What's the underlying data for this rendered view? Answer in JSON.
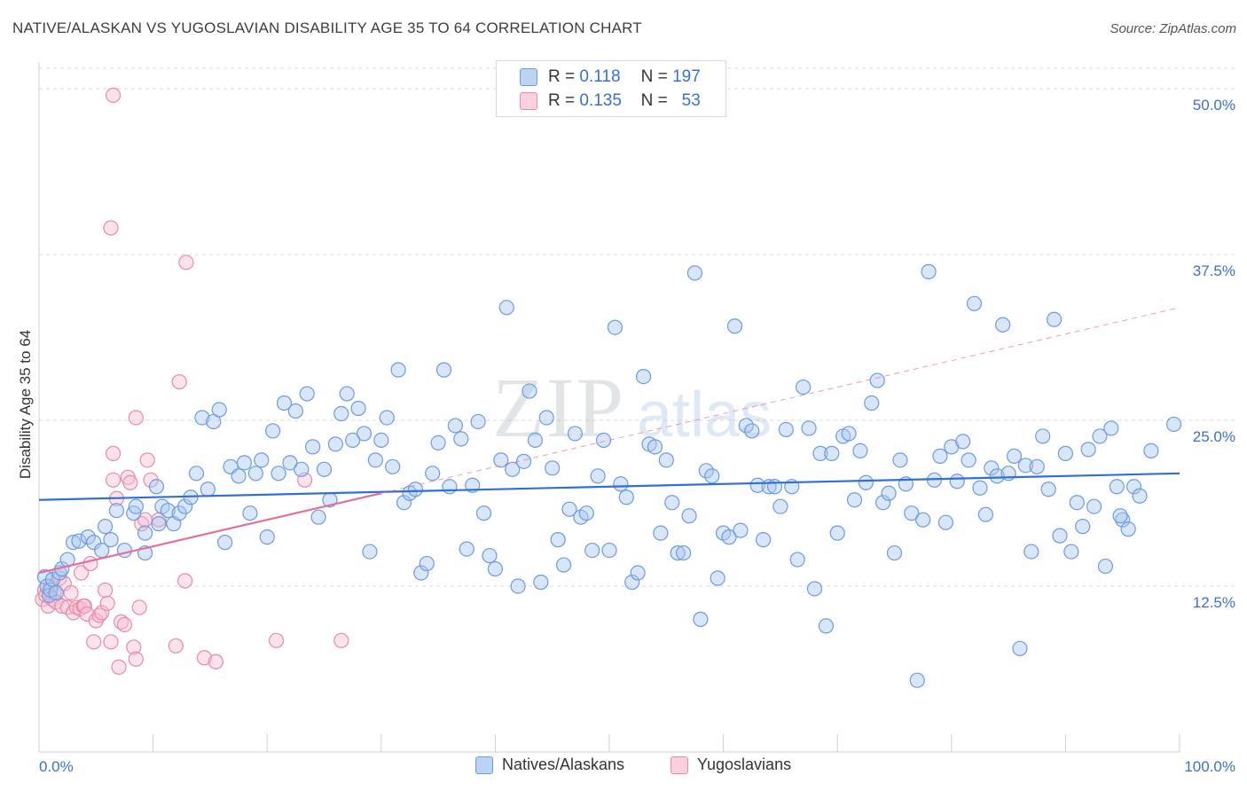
{
  "title": "NATIVE/ALASKAN VS YUGOSLAVIAN DISABILITY AGE 35 TO 64 CORRELATION CHART",
  "source": "Source: ZipAtlas.com",
  "watermark": {
    "zip": "ZIP",
    "atlas": "atlas"
  },
  "legend": {
    "r_label": "R =",
    "n_label": "N =",
    "rows": [
      {
        "r": "0.118",
        "n": "197",
        "fill": "#a9c7f0",
        "stroke": "#6b9be0"
      },
      {
        "r": "0.135",
        "n": "53",
        "fill": "#f7bfd2",
        "stroke": "#e88aa9"
      }
    ]
  },
  "chart_data": {
    "type": "scatter",
    "ylabel": "Disability Age 35 to 64",
    "xlabel": "",
    "xlim": [
      0,
      100
    ],
    "ylim": [
      0,
      52
    ],
    "x_tick_labels": [
      "0.0%",
      "100.0%"
    ],
    "y_ticks": [
      {
        "value": 12.5,
        "label": "12.5%"
      },
      {
        "value": 25.0,
        "label": "25.0%"
      },
      {
        "value": 37.5,
        "label": "37.5%"
      },
      {
        "value": 50.0,
        "label": "50.0%"
      }
    ],
    "grid": "horizontal dashed",
    "series": [
      {
        "name": "Natives/Alaskans",
        "color": "#6b9be0",
        "fill": "#a9c7f0",
        "trend": {
          "x": [
            0,
            100
          ],
          "y": [
            19.0,
            21.0
          ],
          "color": "#2f6fd6"
        },
        "points": [
          [
            0.5,
            13.2
          ],
          [
            0.7,
            12.5
          ],
          [
            0.9,
            11.8
          ],
          [
            1.0,
            12.2
          ],
          [
            1.2,
            13.0
          ],
          [
            1.5,
            12.0
          ],
          [
            1.8,
            13.5
          ],
          [
            2.0,
            13.8
          ],
          [
            2.5,
            14.5
          ],
          [
            3.0,
            15.8
          ],
          [
            3.5,
            15.9
          ],
          [
            4.3,
            16.2
          ],
          [
            4.8,
            15.8
          ],
          [
            5.5,
            15.2
          ],
          [
            5.8,
            17.0
          ],
          [
            6.3,
            16.0
          ],
          [
            6.8,
            18.2
          ],
          [
            7.5,
            15.2
          ],
          [
            8.3,
            18.0
          ],
          [
            8.5,
            18.5
          ],
          [
            9.3,
            16.5
          ],
          [
            9.3,
            15.0
          ],
          [
            10.5,
            17.2
          ],
          [
            10.3,
            20.0
          ],
          [
            10.8,
            18.5
          ],
          [
            11.3,
            18.2
          ],
          [
            11.8,
            17.2
          ],
          [
            12.3,
            18.0
          ],
          [
            12.8,
            18.5
          ],
          [
            13.3,
            19.2
          ],
          [
            13.8,
            21.0
          ],
          [
            14.3,
            25.2
          ],
          [
            14.8,
            19.8
          ],
          [
            15.3,
            24.9
          ],
          [
            15.8,
            25.8
          ],
          [
            16.3,
            15.8
          ],
          [
            16.8,
            21.5
          ],
          [
            17.5,
            20.8
          ],
          [
            18.0,
            21.8
          ],
          [
            18.5,
            18.0
          ],
          [
            19.0,
            21.0
          ],
          [
            19.5,
            22.0
          ],
          [
            20.0,
            16.2
          ],
          [
            20.5,
            24.2
          ],
          [
            21.0,
            21.0
          ],
          [
            21.5,
            26.3
          ],
          [
            22.0,
            21.8
          ],
          [
            22.5,
            25.7
          ],
          [
            23.0,
            21.3
          ],
          [
            23.5,
            27.0
          ],
          [
            24.0,
            23.0
          ],
          [
            24.5,
            17.7
          ],
          [
            25.0,
            21.3
          ],
          [
            25.5,
            19.0
          ],
          [
            26.0,
            23.2
          ],
          [
            26.5,
            25.5
          ],
          [
            27.0,
            27.0
          ],
          [
            27.5,
            23.5
          ],
          [
            28.0,
            25.9
          ],
          [
            28.5,
            24.0
          ],
          [
            29.0,
            15.1
          ],
          [
            29.5,
            22.0
          ],
          [
            30.0,
            23.5
          ],
          [
            30.5,
            25.2
          ],
          [
            31.0,
            21.5
          ],
          [
            31.5,
            28.8
          ],
          [
            32.0,
            18.8
          ],
          [
            32.5,
            19.5
          ],
          [
            33.0,
            19.8
          ],
          [
            33.5,
            13.5
          ],
          [
            34.0,
            14.2
          ],
          [
            34.5,
            21.0
          ],
          [
            35.0,
            23.3
          ],
          [
            35.5,
            28.8
          ],
          [
            36.0,
            20.0
          ],
          [
            36.5,
            24.6
          ],
          [
            37.0,
            23.6
          ],
          [
            37.5,
            15.3
          ],
          [
            38.0,
            20.1
          ],
          [
            38.5,
            24.9
          ],
          [
            39.0,
            18.0
          ],
          [
            39.5,
            14.8
          ],
          [
            40.0,
            13.8
          ],
          [
            40.5,
            22.0
          ],
          [
            41.0,
            33.5
          ],
          [
            41.5,
            21.3
          ],
          [
            42.0,
            12.5
          ],
          [
            42.5,
            21.9
          ],
          [
            43.0,
            27.2
          ],
          [
            43.5,
            23.5
          ],
          [
            44.0,
            12.8
          ],
          [
            44.5,
            25.2
          ],
          [
            45.0,
            21.4
          ],
          [
            45.5,
            16.0
          ],
          [
            46.0,
            14.1
          ],
          [
            46.5,
            18.3
          ],
          [
            47.0,
            24.0
          ],
          [
            47.5,
            17.7
          ],
          [
            48.0,
            18.0
          ],
          [
            48.5,
            15.2
          ],
          [
            49.0,
            20.8
          ],
          [
            49.5,
            23.5
          ],
          [
            50.0,
            15.2
          ],
          [
            50.5,
            32.0
          ],
          [
            51.0,
            20.2
          ],
          [
            51.5,
            19.2
          ],
          [
            52.0,
            12.8
          ],
          [
            52.5,
            13.5
          ],
          [
            53.0,
            28.3
          ],
          [
            53.5,
            23.2
          ],
          [
            54.0,
            23.0
          ],
          [
            54.5,
            16.5
          ],
          [
            55.0,
            22.0
          ],
          [
            55.5,
            18.8
          ],
          [
            56.0,
            15.0
          ],
          [
            56.5,
            15.0
          ],
          [
            57.0,
            17.8
          ],
          [
            57.5,
            36.1
          ],
          [
            58.0,
            10.0
          ],
          [
            58.5,
            21.2
          ],
          [
            59.0,
            20.8
          ],
          [
            59.5,
            13.1
          ],
          [
            60.0,
            16.5
          ],
          [
            60.5,
            16.2
          ],
          [
            61.0,
            32.1
          ],
          [
            61.5,
            16.7
          ],
          [
            62.0,
            24.6
          ],
          [
            62.5,
            24.2
          ],
          [
            63.0,
            20.1
          ],
          [
            63.5,
            16.0
          ],
          [
            64.0,
            20.0
          ],
          [
            64.5,
            20.0
          ],
          [
            65.0,
            18.5
          ],
          [
            65.5,
            24.3
          ],
          [
            66.0,
            20.0
          ],
          [
            66.5,
            14.5
          ],
          [
            67.0,
            27.5
          ],
          [
            67.5,
            24.4
          ],
          [
            68.0,
            12.3
          ],
          [
            68.5,
            22.5
          ],
          [
            69.0,
            9.5
          ],
          [
            69.5,
            22.5
          ],
          [
            70.0,
            16.5
          ],
          [
            70.5,
            23.8
          ],
          [
            71.0,
            24.0
          ],
          [
            71.5,
            19.0
          ],
          [
            72.0,
            22.7
          ],
          [
            72.5,
            20.3
          ],
          [
            73.0,
            26.3
          ],
          [
            73.5,
            28.0
          ],
          [
            74.0,
            18.8
          ],
          [
            74.5,
            19.5
          ],
          [
            75.0,
            15.0
          ],
          [
            75.5,
            22.0
          ],
          [
            76.0,
            20.2
          ],
          [
            76.5,
            18.0
          ],
          [
            77.0,
            5.4
          ],
          [
            77.5,
            17.5
          ],
          [
            78.0,
            36.2
          ],
          [
            78.5,
            20.5
          ],
          [
            79.0,
            22.3
          ],
          [
            79.5,
            17.3
          ],
          [
            80.0,
            23.0
          ],
          [
            80.5,
            20.4
          ],
          [
            81.0,
            23.4
          ],
          [
            81.5,
            22.0
          ],
          [
            82.0,
            33.8
          ],
          [
            82.5,
            19.9
          ],
          [
            83.0,
            17.9
          ],
          [
            83.5,
            21.4
          ],
          [
            84.0,
            20.8
          ],
          [
            84.5,
            32.2
          ],
          [
            85.0,
            21.0
          ],
          [
            85.5,
            22.3
          ],
          [
            86.0,
            7.8
          ],
          [
            86.5,
            21.6
          ],
          [
            87.0,
            15.1
          ],
          [
            87.5,
            21.5
          ],
          [
            88.0,
            23.8
          ],
          [
            88.5,
            19.8
          ],
          [
            89.0,
            32.6
          ],
          [
            89.5,
            16.3
          ],
          [
            90.0,
            22.5
          ],
          [
            90.5,
            15.1
          ],
          [
            91.0,
            18.8
          ],
          [
            91.5,
            17.0
          ],
          [
            92.0,
            22.8
          ],
          [
            92.5,
            18.5
          ],
          [
            93.0,
            23.8
          ],
          [
            93.5,
            14.0
          ],
          [
            94.0,
            24.4
          ],
          [
            94.5,
            20.0
          ],
          [
            95.0,
            17.5
          ],
          [
            95.5,
            16.8
          ],
          [
            96.0,
            20.0
          ],
          [
            96.5,
            19.3
          ],
          [
            97.5,
            22.7
          ],
          [
            99.5,
            24.7
          ],
          [
            94.8,
            17.8
          ]
        ]
      },
      {
        "name": "Yugoslavians",
        "color": "#e88aa9",
        "fill": "#f7bfd2",
        "trend": {
          "x": [
            0,
            30
          ],
          "y": [
            13.5,
            19.5
          ],
          "color": "#e2709a",
          "dashed_extension": {
            "x": [
              30,
              100
            ],
            "y": [
              19.5,
              33.5
            ]
          }
        },
        "points": [
          [
            0.3,
            11.5
          ],
          [
            0.5,
            12.2
          ],
          [
            0.6,
            11.8
          ],
          [
            0.8,
            11.0
          ],
          [
            1.0,
            12.5
          ],
          [
            1.2,
            11.5
          ],
          [
            1.3,
            12.0
          ],
          [
            1.5,
            11.3
          ],
          [
            1.8,
            13.1
          ],
          [
            2.0,
            11.0
          ],
          [
            2.2,
            12.7
          ],
          [
            2.5,
            10.9
          ],
          [
            2.8,
            12.0
          ],
          [
            3.0,
            10.5
          ],
          [
            3.3,
            10.9
          ],
          [
            3.6,
            10.8
          ],
          [
            3.7,
            13.5
          ],
          [
            3.9,
            11.0
          ],
          [
            4.0,
            11.0
          ],
          [
            4.2,
            10.4
          ],
          [
            4.5,
            14.2
          ],
          [
            4.8,
            8.3
          ],
          [
            5.0,
            9.9
          ],
          [
            5.3,
            10.3
          ],
          [
            5.5,
            10.5
          ],
          [
            5.8,
            12.2
          ],
          [
            6.0,
            11.2
          ],
          [
            6.3,
            8.3
          ],
          [
            6.5,
            22.5
          ],
          [
            6.5,
            20.5
          ],
          [
            6.8,
            19.1
          ],
          [
            7.0,
            6.4
          ],
          [
            7.2,
            9.8
          ],
          [
            7.5,
            9.6
          ],
          [
            7.8,
            20.7
          ],
          [
            8.0,
            20.3
          ],
          [
            8.3,
            7.9
          ],
          [
            8.5,
            7.0
          ],
          [
            8.8,
            10.9
          ],
          [
            9.0,
            17.2
          ],
          [
            9.3,
            17.5
          ],
          [
            9.5,
            22.0
          ],
          [
            9.8,
            20.5
          ],
          [
            10.5,
            17.5
          ],
          [
            12.0,
            8.0
          ],
          [
            12.3,
            27.9
          ],
          [
            12.8,
            12.9
          ],
          [
            14.5,
            7.1
          ],
          [
            15.5,
            6.8
          ],
          [
            20.8,
            8.4
          ],
          [
            23.3,
            20.5
          ],
          [
            26.5,
            8.4
          ],
          [
            12.9,
            36.9
          ],
          [
            6.3,
            39.5
          ],
          [
            6.5,
            49.5
          ],
          [
            8.5,
            25.2
          ]
        ]
      }
    ],
    "legend_position": "top-center"
  }
}
